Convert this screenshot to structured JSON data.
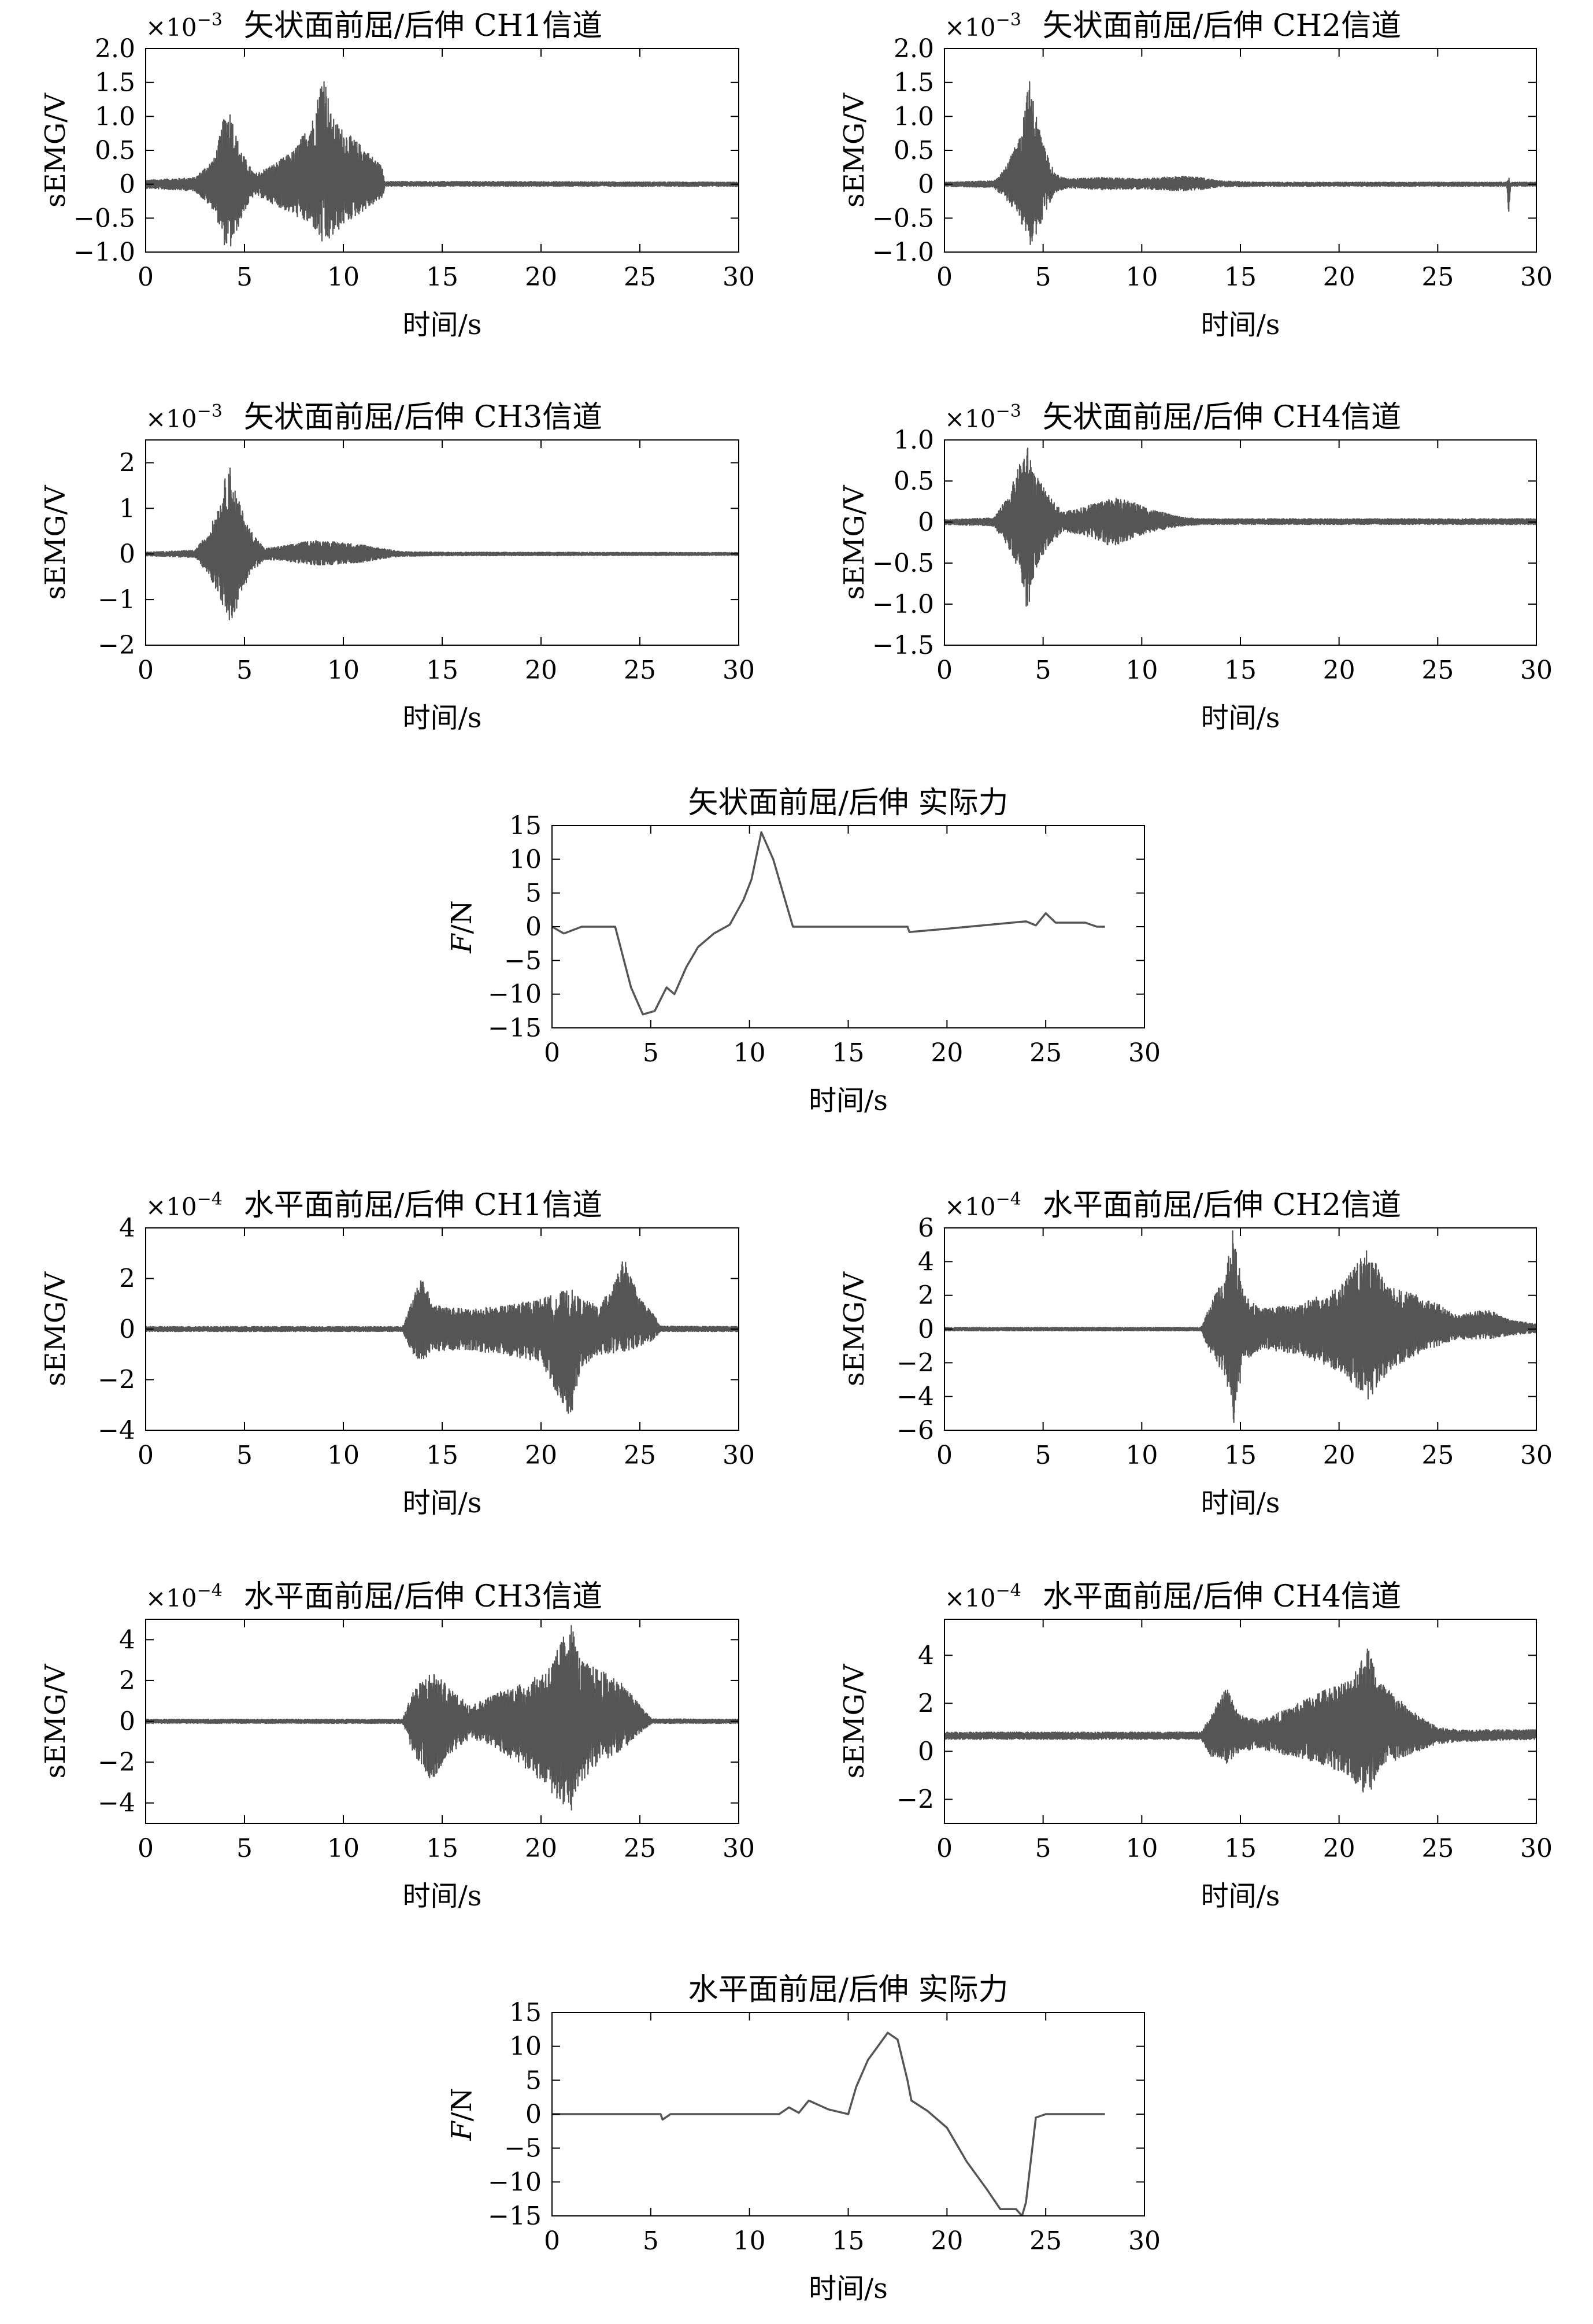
{
  "chart_data": [
    {
      "type": "line",
      "title": "矢状面前屈/后伸 CH1信道",
      "ylabel": "sEMG/V",
      "xlabel": "时间/s",
      "exponent": "×10",
      "exponent_power": "−3",
      "xlim": [
        0,
        30
      ],
      "ylim": [
        -1.0,
        2.0
      ],
      "yticks": [
        "2.0",
        "1.5",
        "1.0",
        "0.5",
        "0",
        "−0.5",
        "−1.0"
      ],
      "ytick_values": [
        2.0,
        1.5,
        1.0,
        0.5,
        0,
        -0.5,
        -1.0
      ],
      "xticks": [
        "0",
        "5",
        "10",
        "15",
        "20",
        "25",
        "30"
      ],
      "envelope": {
        "x": [
          0,
          2.5,
          3.5,
          4.0,
          4.3,
          4.6,
          5.0,
          5.5,
          6.5,
          7.5,
          8.5,
          9.0,
          9.4,
          10,
          11,
          12,
          12.1,
          18,
          30
        ],
        "upper": [
          0.06,
          0.1,
          0.4,
          1.05,
          1.1,
          0.7,
          0.4,
          0.15,
          0.3,
          0.5,
          1.0,
          1.72,
          1.0,
          0.8,
          0.55,
          0.25,
          0.04,
          0.04,
          0.03
        ],
        "lower": [
          -0.06,
          -0.1,
          -0.4,
          -0.92,
          -0.95,
          -0.7,
          -0.4,
          -0.15,
          -0.3,
          -0.45,
          -0.65,
          -0.95,
          -0.8,
          -0.6,
          -0.4,
          -0.2,
          -0.03,
          -0.03,
          -0.03
        ]
      }
    },
    {
      "type": "line",
      "title": "矢状面前屈/后伸 CH2信道",
      "ylabel": "sEMG/V",
      "xlabel": "时间/s",
      "exponent": "×10",
      "exponent_power": "−3",
      "xlim": [
        0,
        30
      ],
      "ylim": [
        -1.0,
        2.0
      ],
      "yticks": [
        "2.0",
        "1.5",
        "1.0",
        "0.5",
        "0",
        "−0.5",
        "−1.0"
      ],
      "ytick_values": [
        2.0,
        1.5,
        1.0,
        0.5,
        0,
        -0.5,
        -1.0
      ],
      "xticks": [
        "0",
        "5",
        "10",
        "15",
        "20",
        "25",
        "30"
      ],
      "envelope": {
        "x": [
          0,
          2.5,
          3.2,
          3.8,
          4.3,
          4.6,
          5.0,
          5.6,
          6.2,
          8,
          10,
          12,
          13,
          14,
          16,
          28.5,
          28.6,
          28.7,
          30
        ],
        "upper": [
          0.03,
          0.05,
          0.3,
          0.7,
          1.55,
          1.1,
          0.6,
          0.15,
          0.08,
          0.1,
          0.08,
          0.12,
          0.1,
          0.05,
          0.03,
          0.03,
          0.15,
          0.03,
          0.03
        ],
        "lower": [
          -0.03,
          -0.05,
          -0.25,
          -0.5,
          -0.92,
          -0.8,
          -0.5,
          -0.12,
          -0.06,
          -0.08,
          -0.07,
          -0.1,
          -0.08,
          -0.04,
          -0.03,
          -0.03,
          -0.45,
          -0.03,
          -0.03
        ]
      }
    },
    {
      "type": "line",
      "title": "矢状面前屈/后伸 CH3信道",
      "ylabel": "sEMG/V",
      "xlabel": "时间/s",
      "exponent": "×10",
      "exponent_power": "−3",
      "xlim": [
        0,
        30
      ],
      "ylim": [
        -2,
        2.5
      ],
      "yticks": [
        "2",
        "1",
        "0",
        "−1",
        "−2"
      ],
      "ytick_values": [
        2,
        1,
        0,
        -1,
        -2
      ],
      "xticks": [
        "0",
        "5",
        "10",
        "15",
        "20",
        "25",
        "30"
      ],
      "envelope": {
        "x": [
          0,
          2.5,
          3.2,
          3.8,
          4.2,
          4.6,
          5.2,
          6.0,
          7,
          8.5,
          10,
          11,
          12,
          13,
          15,
          30
        ],
        "upper": [
          0.04,
          0.08,
          0.5,
          1.2,
          2.05,
          1.3,
          0.6,
          0.12,
          0.18,
          0.3,
          0.25,
          0.2,
          0.12,
          0.05,
          0.04,
          0.03
        ],
        "lower": [
          -0.04,
          -0.08,
          -0.45,
          -1.0,
          -1.6,
          -1.2,
          -0.5,
          -0.12,
          -0.15,
          -0.25,
          -0.22,
          -0.18,
          -0.1,
          -0.05,
          -0.04,
          -0.03
        ]
      }
    },
    {
      "type": "line",
      "title": "矢状面前屈/后伸 CH4信道",
      "ylabel": "sEMG/V",
      "xlabel": "时间/s",
      "exponent": "×10",
      "exponent_power": "−3",
      "xlim": [
        0,
        30
      ],
      "ylim": [
        -1.5,
        1.0
      ],
      "yticks": [
        "1.0",
        "0.5",
        "0",
        "−0.5",
        "−1.0",
        "−1.5"
      ],
      "ytick_values": [
        1.0,
        0.5,
        0,
        -0.5,
        -1.0,
        -1.5
      ],
      "xticks": [
        "0",
        "5",
        "10",
        "15",
        "20",
        "25",
        "30"
      ],
      "envelope": {
        "x": [
          0,
          2.5,
          3.2,
          3.8,
          4.2,
          4.6,
          5.2,
          6.0,
          7,
          8.5,
          9.5,
          10.5,
          12,
          13,
          30
        ],
        "upper": [
          0.03,
          0.05,
          0.3,
          0.7,
          0.93,
          0.6,
          0.35,
          0.12,
          0.18,
          0.3,
          0.25,
          0.15,
          0.06,
          0.04,
          0.04
        ],
        "lower": [
          -0.03,
          -0.05,
          -0.3,
          -0.6,
          -1.1,
          -0.6,
          -0.3,
          -0.12,
          -0.15,
          -0.3,
          -0.2,
          -0.12,
          -0.05,
          -0.03,
          -0.03
        ]
      }
    },
    {
      "type": "line",
      "title": "矢状面前屈/后伸 实际力",
      "ylabel": "F/N",
      "ylabel_italic": "F",
      "ylabel_rest": "/N",
      "xlabel": "时间/s",
      "xlim": [
        0,
        30
      ],
      "ylim": [
        -15,
        15
      ],
      "yticks": [
        "15",
        "10",
        "5",
        "0",
        "−5",
        "−10",
        "−15"
      ],
      "ytick_values": [
        15,
        10,
        5,
        0,
        -5,
        -10,
        -15
      ],
      "xticks": [
        "0",
        "5",
        "10",
        "15",
        "20",
        "25",
        "30"
      ],
      "series": [
        {
          "x": [
            0,
            0.6,
            1.5,
            3.2,
            4,
            4.6,
            5.2,
            5.8,
            6.2,
            6.8,
            7.4,
            8.2,
            9,
            9.7,
            10.1,
            10.6,
            11.2,
            12.2,
            15,
            18,
            18.1,
            20,
            24,
            24.5,
            25,
            25.5,
            27,
            27.6,
            28
          ],
          "y": [
            0,
            -1,
            0,
            0,
            -9,
            -13,
            -12.5,
            -9,
            -10,
            -6,
            -3,
            -1,
            0.3,
            4,
            7,
            14,
            10,
            0,
            0,
            0,
            -0.8,
            -0.3,
            0.8,
            0.2,
            2,
            0.6,
            0.6,
            0,
            0
          ]
        }
      ]
    },
    {
      "type": "line",
      "title": "水平面前屈/后伸 CH1信道",
      "ylabel": "sEMG/V",
      "xlabel": "时间/s",
      "exponent": "×10",
      "exponent_power": "−4",
      "xlim": [
        0,
        30
      ],
      "ylim": [
        -4,
        4
      ],
      "yticks": [
        "4",
        "2",
        "0",
        "−2",
        "−4"
      ],
      "ytick_values": [
        4,
        2,
        0,
        -2,
        -4
      ],
      "xticks": [
        "0",
        "5",
        "10",
        "15",
        "20",
        "25",
        "30"
      ],
      "envelope": {
        "x": [
          0,
          13,
          13.5,
          14,
          14.5,
          16,
          18,
          20,
          21.5,
          22,
          23,
          24.2,
          25,
          25.8,
          26,
          30
        ],
        "upper": [
          0.1,
          0.1,
          1.2,
          2.1,
          1.0,
          0.8,
          0.9,
          1.2,
          1.6,
          1.2,
          0.9,
          2.8,
          1.2,
          0.5,
          0.12,
          0.1
        ],
        "lower": [
          -0.1,
          -0.1,
          -1.0,
          -1.3,
          -0.9,
          -0.8,
          -1.0,
          -1.3,
          -3.6,
          -1.5,
          -1.0,
          -0.9,
          -0.7,
          -0.4,
          -0.1,
          -0.1
        ]
      }
    },
    {
      "type": "line",
      "title": "水平面前屈/后伸 CH2信道",
      "ylabel": "sEMG/V",
      "xlabel": "时间/s",
      "exponent": "×10",
      "exponent_power": "−4",
      "xlim": [
        0,
        30
      ],
      "ylim": [
        -6,
        6
      ],
      "yticks": [
        "6",
        "4",
        "2",
        "0",
        "−2",
        "−4",
        "−6"
      ],
      "ytick_values": [
        6,
        4,
        2,
        0,
        -2,
        -4,
        -6
      ],
      "xticks": [
        "0",
        "5",
        "10",
        "15",
        "20",
        "25",
        "30"
      ],
      "envelope": {
        "x": [
          0,
          13,
          13.5,
          14.3,
          14.6,
          15.2,
          16,
          18,
          20,
          21.5,
          22.5,
          24,
          25,
          26,
          27.5,
          28.5,
          30
        ],
        "upper": [
          0.1,
          0.1,
          1.5,
          3.5,
          6.0,
          2.0,
          1.2,
          1.5,
          2.5,
          4.8,
          2.5,
          2.0,
          1.5,
          0.8,
          1.2,
          0.6,
          0.3
        ],
        "lower": [
          -0.1,
          -0.1,
          -1.5,
          -3.0,
          -6.0,
          -2.0,
          -1.2,
          -1.5,
          -2.5,
          -4.2,
          -2.5,
          -1.5,
          -1.0,
          -0.6,
          -0.6,
          -0.4,
          -0.2
        ]
      }
    },
    {
      "type": "line",
      "title": "水平面前屈/后伸 CH3信道",
      "ylabel": "sEMG/V",
      "xlabel": "时间/s",
      "exponent": "×10",
      "exponent_power": "−4",
      "xlim": [
        0,
        30
      ],
      "ylim": [
        -5,
        5
      ],
      "yticks": [
        "4",
        "2",
        "0",
        "−2",
        "−4"
      ],
      "ytick_values": [
        4,
        2,
        0,
        -2,
        -4
      ],
      "xticks": [
        "0",
        "5",
        "10",
        "15",
        "20",
        "25",
        "30"
      ],
      "envelope": {
        "x": [
          0,
          13,
          13.5,
          14.5,
          15.5,
          16.5,
          18,
          19.5,
          20.5,
          21.5,
          22,
          23,
          24,
          25,
          25.6,
          30
        ],
        "upper": [
          0.1,
          0.1,
          1.5,
          2.5,
          1.5,
          0.8,
          1.5,
          2.0,
          2.8,
          5.0,
          3.0,
          2.5,
          2.0,
          0.8,
          0.12,
          0.1
        ],
        "lower": [
          -0.1,
          -0.1,
          -1.5,
          -3.0,
          -1.5,
          -0.8,
          -1.5,
          -2.5,
          -3.5,
          -4.5,
          -3.0,
          -2.0,
          -1.5,
          -0.6,
          -0.1,
          -0.1
        ]
      }
    },
    {
      "type": "line",
      "title": "水平面前屈/后伸 CH4信道",
      "ylabel": "sEMG/V",
      "xlabel": "时间/s",
      "exponent": "×10",
      "exponent_power": "−4",
      "xlim": [
        0,
        30
      ],
      "ylim": [
        -3,
        5.5
      ],
      "yticks": [
        "4",
        "2",
        "0",
        "−2"
      ],
      "ytick_values": [
        4,
        2,
        0,
        -2
      ],
      "xticks": [
        "0",
        "5",
        "10",
        "15",
        "20",
        "25",
        "30"
      ],
      "envelope": {
        "x": [
          0,
          13,
          13.5,
          14.3,
          15,
          16,
          17.5,
          19,
          20.5,
          21.5,
          22,
          23,
          24,
          25,
          26,
          30
        ],
        "upper": [
          0.8,
          0.8,
          1.5,
          2.7,
          1.5,
          1.3,
          1.8,
          2.5,
          3.0,
          4.4,
          3.0,
          2.2,
          1.5,
          1.0,
          0.9,
          0.9
        ],
        "lower": [
          0.5,
          0.5,
          -0.2,
          -0.5,
          0.0,
          0.1,
          -0.2,
          -0.5,
          -1.0,
          -2.0,
          -0.8,
          -0.3,
          0.0,
          0.3,
          0.4,
          0.5
        ]
      }
    },
    {
      "type": "line",
      "title": "水平面前屈/后伸 实际力",
      "ylabel": "F/N",
      "ylabel_italic": "F",
      "ylabel_rest": "/N",
      "xlabel": "时间/s",
      "xlim": [
        0,
        30
      ],
      "ylim": [
        -15,
        15
      ],
      "yticks": [
        "15",
        "10",
        "5",
        "0",
        "−5",
        "−10",
        "−15"
      ],
      "ytick_values": [
        15,
        10,
        5,
        0,
        -5,
        -10,
        -15
      ],
      "xticks": [
        "0",
        "5",
        "10",
        "15",
        "20",
        "25",
        "30"
      ],
      "series": [
        {
          "x": [
            0,
            5.5,
            5.6,
            6,
            11.5,
            12,
            12.5,
            13,
            14,
            15,
            15.4,
            16,
            16.5,
            17,
            17.5,
            18,
            18.2,
            19,
            20,
            21,
            22,
            22.7,
            23.5,
            23.8,
            24,
            24.5,
            25,
            28
          ],
          "y": [
            0,
            0,
            -0.8,
            0,
            0,
            1,
            0.2,
            2,
            0.7,
            0,
            4,
            8,
            10,
            12,
            11,
            5,
            2,
            0.5,
            -2,
            -7,
            -11,
            -14,
            -14,
            -15,
            -13,
            -0.5,
            0,
            0
          ]
        }
      ]
    }
  ]
}
